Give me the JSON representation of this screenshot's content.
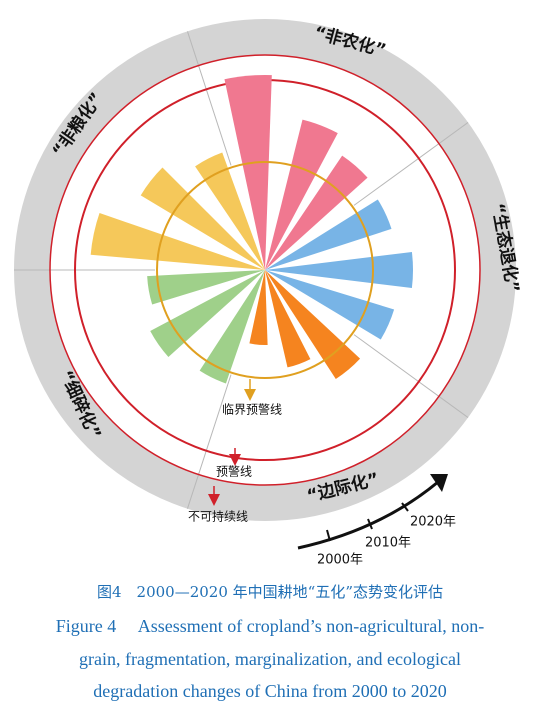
{
  "rings": {
    "non_agri": "“非农化”",
    "eco": "“生态退化”",
    "marginal": "“边际化”",
    "fragment": "“细碎化”",
    "non_grain": "“非粮化”"
  },
  "lines": {
    "critical": "临界预警线",
    "warning": "预警线",
    "unsustainable": "不可持续线"
  },
  "years": [
    "2000年",
    "2010年",
    "2020年"
  ],
  "caption": {
    "cn": "图4　2000—2020 年中国耕地“五化”态势变化评估",
    "en": [
      "Figure 4　 Assessment of cropland’s non-agricultural, non-",
      "grain, fragmentation, marginalization, and ecological",
      "degradation changes of China from 2000 to 2020"
    ]
  }
}
